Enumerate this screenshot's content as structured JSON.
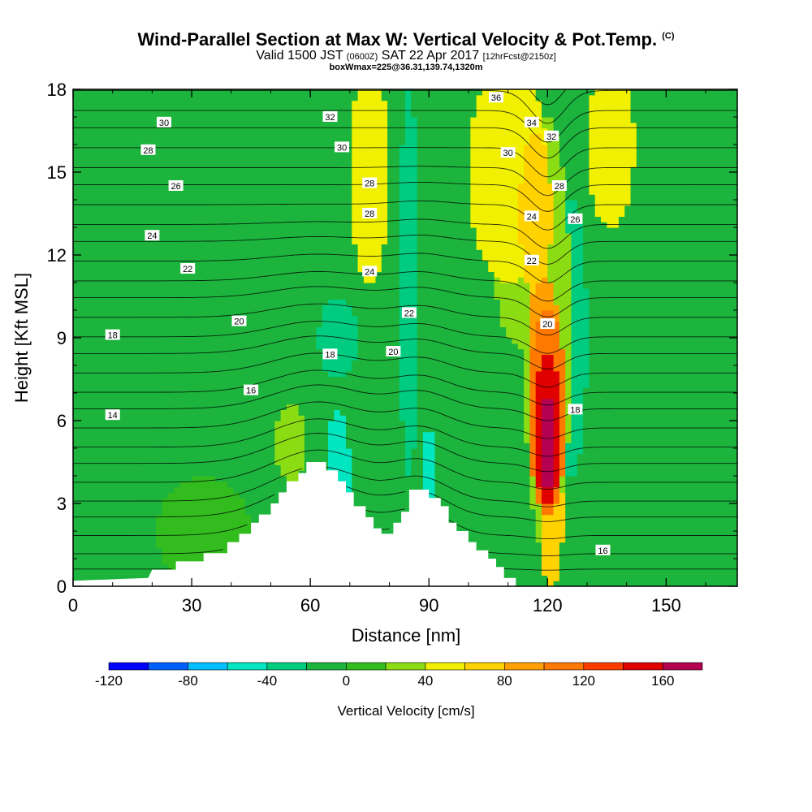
{
  "header": {
    "title": "Wind-Parallel Section at Max W: Vertical Velocity & Pot.Temp.",
    "title_mark": "(C)",
    "valid_prefix": "Valid 1500 JST",
    "valid_utc": "(0600Z)",
    "valid_date": "SAT 22 Apr 2017",
    "forecast_info": "[12hrFcst@2150z]",
    "box_info": "boxWmax=225@36.31,139.74,1320m"
  },
  "chart_data": {
    "type": "heatmap",
    "xlabel": "Distance [nm]",
    "ylabel": "Height [Kft MSL]",
    "xlim": [
      0,
      168
    ],
    "ylim": [
      0,
      18
    ],
    "x_ticks": [
      0,
      30,
      60,
      90,
      120,
      150
    ],
    "y_ticks": [
      0,
      3,
      6,
      9,
      12,
      15,
      18
    ],
    "x_tick_labels": [
      "0",
      "30",
      "60",
      "90",
      "120",
      "150"
    ],
    "y_tick_labels": [
      "0",
      "3",
      "6",
      "9",
      "12",
      "15",
      "18"
    ],
    "colorbar": {
      "label": "Vertical Velocity [cm/s]",
      "levels": [
        -120,
        -100,
        -80,
        -60,
        -40,
        -20,
        0,
        20,
        40,
        60,
        80,
        100,
        120,
        140,
        160,
        180
      ],
      "colors": [
        "#0000ff",
        "#0060ff",
        "#00bfff",
        "#00e6c0",
        "#00cc80",
        "#1cb43c",
        "#32bc1e",
        "#8cdc14",
        "#f0f000",
        "#ffd200",
        "#ffa000",
        "#ff7800",
        "#ff3c00",
        "#e10000",
        "#b40050",
        "#780096"
      ],
      "tick_values": [
        -120,
        -80,
        -40,
        0,
        40,
        80,
        120,
        160
      ],
      "tick_labels": [
        "-120",
        "-80",
        "-40",
        "0",
        "40",
        "80",
        "120",
        "160"
      ]
    },
    "terrain": [
      {
        "x": 0,
        "h": 0.2
      },
      {
        "x": 19,
        "h": 0.3
      },
      {
        "x": 20,
        "h": 0.6
      },
      {
        "x": 26,
        "h": 0.6
      },
      {
        "x": 26,
        "h": 0.9
      },
      {
        "x": 33,
        "h": 0.9
      },
      {
        "x": 33,
        "h": 1.2
      },
      {
        "x": 39,
        "h": 1.2
      },
      {
        "x": 39,
        "h": 1.6
      },
      {
        "x": 42,
        "h": 1.6
      },
      {
        "x": 42,
        "h": 1.9
      },
      {
        "x": 45,
        "h": 1.9
      },
      {
        "x": 45,
        "h": 2.3
      },
      {
        "x": 47,
        "h": 2.3
      },
      {
        "x": 47,
        "h": 2.6
      },
      {
        "x": 50,
        "h": 2.6
      },
      {
        "x": 50,
        "h": 3.0
      },
      {
        "x": 52,
        "h": 3.0
      },
      {
        "x": 52,
        "h": 3.4
      },
      {
        "x": 54,
        "h": 3.4
      },
      {
        "x": 54,
        "h": 3.8
      },
      {
        "x": 57,
        "h": 3.8
      },
      {
        "x": 57,
        "h": 4.1
      },
      {
        "x": 59,
        "h": 4.1
      },
      {
        "x": 59,
        "h": 4.5
      },
      {
        "x": 64,
        "h": 4.5
      },
      {
        "x": 64,
        "h": 4.2
      },
      {
        "x": 67,
        "h": 4.2
      },
      {
        "x": 67,
        "h": 3.8
      },
      {
        "x": 69,
        "h": 3.8
      },
      {
        "x": 69,
        "h": 3.4
      },
      {
        "x": 71,
        "h": 3.4
      },
      {
        "x": 71,
        "h": 2.9
      },
      {
        "x": 74,
        "h": 2.9
      },
      {
        "x": 74,
        "h": 2.5
      },
      {
        "x": 76,
        "h": 2.5
      },
      {
        "x": 76,
        "h": 2.1
      },
      {
        "x": 78,
        "h": 2.1
      },
      {
        "x": 78,
        "h": 1.9
      },
      {
        "x": 81,
        "h": 1.9
      },
      {
        "x": 81,
        "h": 2.3
      },
      {
        "x": 83,
        "h": 2.3
      },
      {
        "x": 83,
        "h": 2.7
      },
      {
        "x": 85,
        "h": 2.7
      },
      {
        "x": 85,
        "h": 3.5
      },
      {
        "x": 90,
        "h": 3.5
      },
      {
        "x": 90,
        "h": 3.2
      },
      {
        "x": 93,
        "h": 3.2
      },
      {
        "x": 93,
        "h": 2.9
      },
      {
        "x": 95,
        "h": 2.9
      },
      {
        "x": 95,
        "h": 2.3
      },
      {
        "x": 97,
        "h": 2.3
      },
      {
        "x": 97,
        "h": 2.0
      },
      {
        "x": 100,
        "h": 2.0
      },
      {
        "x": 100,
        "h": 1.6
      },
      {
        "x": 102,
        "h": 1.6
      },
      {
        "x": 102,
        "h": 1.3
      },
      {
        "x": 105,
        "h": 1.3
      },
      {
        "x": 105,
        "h": 1.0
      },
      {
        "x": 107,
        "h": 1.0
      },
      {
        "x": 107,
        "h": 0.7
      },
      {
        "x": 109,
        "h": 0.7
      },
      {
        "x": 109,
        "h": 0.3
      },
      {
        "x": 112,
        "h": 0.3
      },
      {
        "x": 112,
        "h": 0.0
      },
      {
        "x": 168,
        "h": 0.0
      }
    ],
    "w_field": {
      "background": -10,
      "features": [
        {
          "x": 8,
          "y": 11,
          "rx": 9,
          "ry": 4,
          "w": 8
        },
        {
          "x": 24,
          "y": 5,
          "rx": 11,
          "ry": 4,
          "w": 8
        },
        {
          "x": 38,
          "y": 10,
          "rx": 4,
          "ry": 7,
          "w": 8
        },
        {
          "x": 33,
          "y": 2,
          "rx": 12,
          "ry": 2,
          "w": 12
        },
        {
          "x": 52,
          "y": 16,
          "rx": 6,
          "ry": 4,
          "w": 8
        },
        {
          "x": 55,
          "y": 5.2,
          "rx": 4,
          "ry": 1.4,
          "w": 35
        },
        {
          "x": 67,
          "y": 4,
          "rx": 3,
          "ry": 2.5,
          "w": -45
        },
        {
          "x": 67,
          "y": 9,
          "rx": 5,
          "ry": 1.5,
          "w": -28
        },
        {
          "x": 75,
          "y": 15,
          "rx": 5,
          "ry": 4,
          "w": 45
        },
        {
          "x": 74,
          "y": 8,
          "rx": 3,
          "ry": 3,
          "w": 10
        },
        {
          "x": 85,
          "y": 11,
          "rx": 2.5,
          "ry": 7,
          "w": -25
        },
        {
          "x": 90,
          "y": 4.2,
          "rx": 2,
          "ry": 1.6,
          "w": -45
        },
        {
          "x": 96,
          "y": 8,
          "rx": 8,
          "ry": 6,
          "w": 10
        },
        {
          "x": 100,
          "y": 15,
          "rx": 6,
          "ry": 3,
          "w": 10
        },
        {
          "x": 110,
          "y": 15,
          "rx": 10,
          "ry": 4,
          "w": 45
        },
        {
          "x": 115,
          "y": 11,
          "rx": 8,
          "ry": 2.5,
          "w": 35
        },
        {
          "x": 117,
          "y": 13.5,
          "rx": 4,
          "ry": 3,
          "w": 65
        },
        {
          "x": 120,
          "y": 9,
          "rx": 6,
          "ry": 8,
          "w": 32
        },
        {
          "x": 119,
          "y": 9,
          "rx": 3.8,
          "ry": 2.2,
          "w": 80
        },
        {
          "x": 120,
          "y": 6.3,
          "rx": 4.8,
          "ry": 3.8,
          "w": 110
        },
        {
          "x": 120,
          "y": 5.7,
          "rx": 3.3,
          "ry": 2.8,
          "w": 150
        },
        {
          "x": 120,
          "y": 5.2,
          "rx": 1.8,
          "ry": 1.7,
          "w": 170
        },
        {
          "x": 121,
          "y": 2.5,
          "rx": 3,
          "ry": 2.5,
          "w": 60
        },
        {
          "x": 126,
          "y": 9,
          "rx": 4,
          "ry": 5,
          "w": -25
        },
        {
          "x": 136,
          "y": 16,
          "rx": 6,
          "ry": 3,
          "w": 40
        },
        {
          "x": 140,
          "y": 9,
          "rx": 8,
          "ry": 6,
          "w": 8
        },
        {
          "x": 142,
          "y": 3,
          "rx": 12,
          "ry": 3,
          "w": 8
        },
        {
          "x": 162,
          "y": 12,
          "rx": 6,
          "ry": 6,
          "w": 8
        },
        {
          "x": 130,
          "y": 1.5,
          "rx": 12,
          "ry": 2,
          "w": 8
        }
      ]
    },
    "theta_levels": [
      10,
      10.7,
      11.3,
      12,
      12.7,
      13.3,
      14,
      14.7,
      15.3,
      16,
      16.7,
      17.3,
      18,
      18.7,
      19.3,
      20,
      20.7,
      21.3,
      22,
      22.7,
      23.3,
      24,
      24.7,
      25.3,
      26,
      26.7,
      27.3,
      28,
      28.7,
      29.3,
      30,
      30.7,
      31.3,
      32,
      32.7,
      33.3,
      34,
      34.7,
      35.3,
      36,
      36.7,
      37.3,
      38
    ],
    "contour_labels": [
      {
        "text": "30",
        "x": 23,
        "y": 16.8
      },
      {
        "text": "28",
        "x": 19,
        "y": 15.8
      },
      {
        "text": "26",
        "x": 26,
        "y": 14.5
      },
      {
        "text": "24",
        "x": 20,
        "y": 12.7
      },
      {
        "text": "22",
        "x": 29,
        "y": 11.5
      },
      {
        "text": "20",
        "x": 42,
        "y": 9.6
      },
      {
        "text": "18",
        "x": 10,
        "y": 9.1
      },
      {
        "text": "16",
        "x": 45,
        "y": 7.1
      },
      {
        "text": "14",
        "x": 10,
        "y": 6.2
      },
      {
        "text": "32",
        "x": 65,
        "y": 17.0
      },
      {
        "text": "30",
        "x": 68,
        "y": 15.9
      },
      {
        "text": "28",
        "x": 75,
        "y": 14.6
      },
      {
        "text": "28",
        "x": 75,
        "y": 13.5
      },
      {
        "text": "24",
        "x": 75,
        "y": 11.4
      },
      {
        "text": "22",
        "x": 85,
        "y": 9.9
      },
      {
        "text": "20",
        "x": 81,
        "y": 8.5
      },
      {
        "text": "18",
        "x": 65,
        "y": 8.4
      },
      {
        "text": "36",
        "x": 107,
        "y": 17.7
      },
      {
        "text": "34",
        "x": 116,
        "y": 16.8
      },
      {
        "text": "32",
        "x": 121,
        "y": 16.3
      },
      {
        "text": "30",
        "x": 110,
        "y": 15.7
      },
      {
        "text": "28",
        "x": 123,
        "y": 14.5
      },
      {
        "text": "26",
        "x": 127,
        "y": 13.3
      },
      {
        "text": "24",
        "x": 116,
        "y": 13.4
      },
      {
        "text": "22",
        "x": 116,
        "y": 11.8
      },
      {
        "text": "20",
        "x": 120,
        "y": 9.5
      },
      {
        "text": "18",
        "x": 127,
        "y": 6.4
      },
      {
        "text": "16",
        "x": 134,
        "y": 1.3
      }
    ]
  }
}
